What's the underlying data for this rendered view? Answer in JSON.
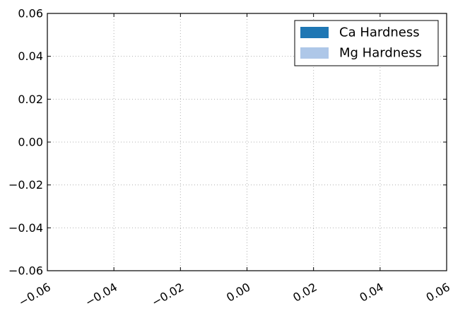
{
  "chart_data": {
    "type": "bar",
    "title": "",
    "xlabel": "",
    "ylabel": "",
    "xlim": [
      -0.06,
      0.06
    ],
    "ylim": [
      -0.06,
      0.06
    ],
    "grid": true,
    "legend_position": "top-right",
    "x_ticks": [
      {
        "value": -0.06,
        "label": "−0.06"
      },
      {
        "value": -0.04,
        "label": "−0.04"
      },
      {
        "value": -0.02,
        "label": "−0.02"
      },
      {
        "value": 0.0,
        "label": "0.00"
      },
      {
        "value": 0.02,
        "label": "0.02"
      },
      {
        "value": 0.04,
        "label": "0.04"
      },
      {
        "value": 0.06,
        "label": "0.06"
      }
    ],
    "y_ticks": [
      {
        "value": 0.06,
        "label": "0.06"
      },
      {
        "value": 0.04,
        "label": "0.04"
      },
      {
        "value": 0.02,
        "label": "0.02"
      },
      {
        "value": 0.0,
        "label": "0.00"
      },
      {
        "value": -0.02,
        "label": "−0.02"
      },
      {
        "value": -0.04,
        "label": "−0.04"
      },
      {
        "value": -0.06,
        "label": "−0.06"
      }
    ],
    "series": [
      {
        "name": "Ca Hardness",
        "color": "#1f77b4",
        "values": []
      },
      {
        "name": "Mg Hardness",
        "color": "#aec7e8",
        "values": []
      }
    ]
  }
}
